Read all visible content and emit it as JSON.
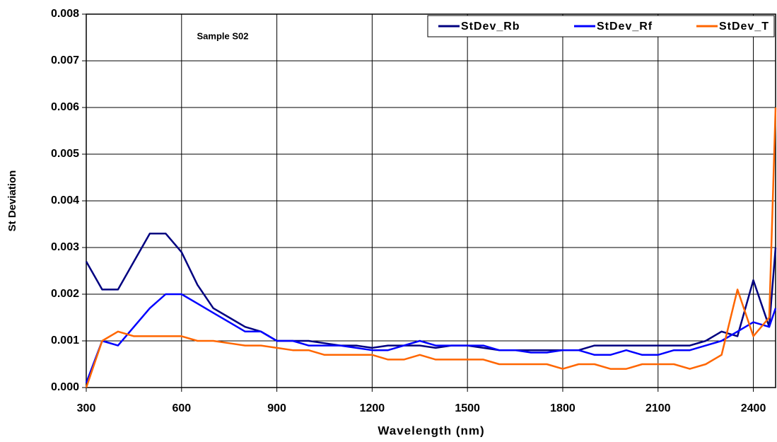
{
  "chart_data": {
    "type": "line",
    "annotation": "Sample S02",
    "xlabel": "Wavelength (nm)",
    "ylabel": "St Deviation",
    "x": [
      300,
      350,
      400,
      450,
      500,
      550,
      600,
      650,
      700,
      750,
      800,
      850,
      900,
      950,
      1000,
      1050,
      1100,
      1150,
      1200,
      1250,
      1300,
      1350,
      1400,
      1450,
      1500,
      1550,
      1600,
      1650,
      1700,
      1750,
      1800,
      1850,
      1900,
      1950,
      2000,
      2050,
      2100,
      2150,
      2200,
      2250,
      2300,
      2350,
      2400,
      2450,
      2470
    ],
    "series": [
      {
        "name": "StDev_Rb",
        "color": "#000080",
        "values": [
          0.0027,
          0.0021,
          0.0021,
          0.0027,
          0.0033,
          0.0033,
          0.0029,
          0.0022,
          0.0017,
          0.0015,
          0.0013,
          0.0012,
          0.001,
          0.001,
          0.001,
          0.00095,
          0.0009,
          0.0009,
          0.00085,
          0.0009,
          0.0009,
          0.0009,
          0.00085,
          0.0009,
          0.0009,
          0.00085,
          0.0008,
          0.0008,
          0.0008,
          0.0008,
          0.0008,
          0.0008,
          0.0009,
          0.0009,
          0.0009,
          0.0009,
          0.0009,
          0.0009,
          0.0009,
          0.001,
          0.0012,
          0.0011,
          0.0023,
          0.0013,
          0.003
        ]
      },
      {
        "name": "StDev_Rf",
        "color": "#0000ff",
        "values": [
          0.0001,
          0.001,
          0.0009,
          0.0013,
          0.0017,
          0.002,
          0.002,
          0.0018,
          0.0016,
          0.0014,
          0.0012,
          0.0012,
          0.001,
          0.001,
          0.0009,
          0.0009,
          0.0009,
          0.00085,
          0.0008,
          0.0008,
          0.0009,
          0.001,
          0.0009,
          0.0009,
          0.0009,
          0.0009,
          0.0008,
          0.0008,
          0.00075,
          0.00075,
          0.0008,
          0.0008,
          0.0007,
          0.0007,
          0.0008,
          0.0007,
          0.0007,
          0.0008,
          0.0008,
          0.0009,
          0.001,
          0.0012,
          0.0014,
          0.0013,
          0.0017
        ]
      },
      {
        "name": "StDev_T",
        "color": "#ff6600",
        "values": [
          0,
          0.001,
          0.0012,
          0.0011,
          0.0011,
          0.0011,
          0.0011,
          0.001,
          0.001,
          0.00095,
          0.0009,
          0.0009,
          0.00085,
          0.0008,
          0.0008,
          0.0007,
          0.0007,
          0.0007,
          0.0007,
          0.0006,
          0.0006,
          0.0007,
          0.0006,
          0.0006,
          0.0006,
          0.0006,
          0.0005,
          0.0005,
          0.0005,
          0.0005,
          0.0004,
          0.0005,
          0.0005,
          0.0004,
          0.0004,
          0.0005,
          0.0005,
          0.0005,
          0.0004,
          0.0005,
          0.0007,
          0.0021,
          0.0011,
          0.0015,
          0.006
        ]
      }
    ],
    "xlim": [
      300,
      2470
    ],
    "xticks": [
      300,
      600,
      900,
      1200,
      1500,
      1800,
      2100,
      2400
    ],
    "ylim": [
      0,
      0.008
    ],
    "yticks": [
      {
        "value": 0,
        "label": "0.000"
      },
      0.001,
      0.002,
      0.003,
      0.004,
      0.005,
      0.006,
      0.007,
      0.008
    ],
    "grid": true,
    "legend": "top-right"
  }
}
